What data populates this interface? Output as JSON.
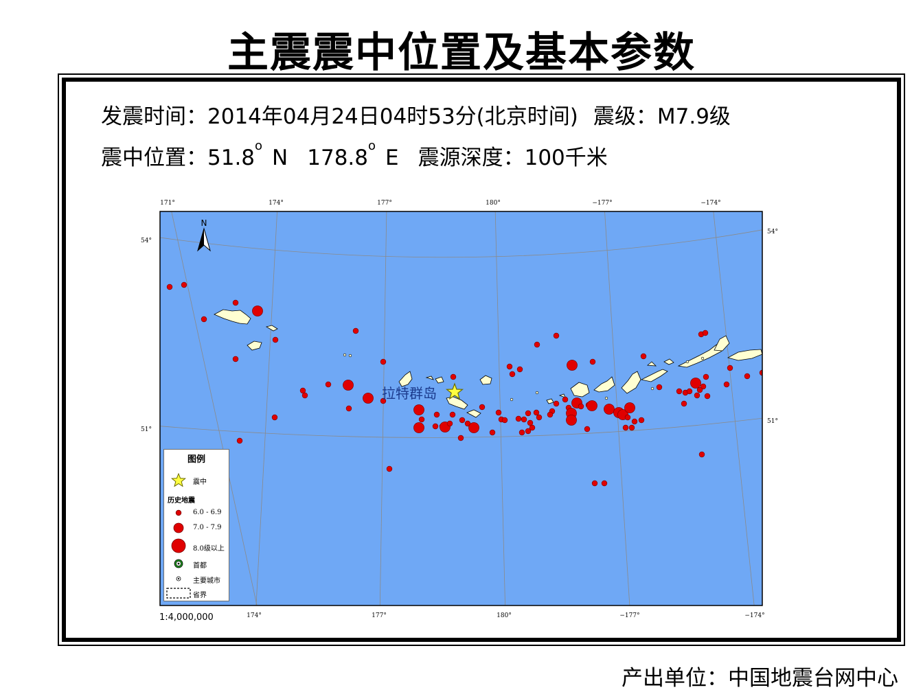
{
  "title": "主震震中位置及基本参数",
  "info": {
    "time_label": "发震时间：",
    "time_value": "2014年04月24日04时53分(北京时间)",
    "magnitude_label": "震级：",
    "magnitude_value": "M7.9级",
    "location_label": "震中位置：",
    "lat_value": "51.8",
    "lat_hemi": "N",
    "lon_value": "178.8",
    "lon_hemi": "E",
    "degree_mark": "o",
    "depth_label": "震源深度：",
    "depth_value": "100千米"
  },
  "map": {
    "place_label": "拉特群岛",
    "scale": "1:4,000,000",
    "north_label": "N",
    "top_lon_ticks": [
      "171°",
      "174°",
      "177°",
      "180°",
      "−177°",
      "−174°"
    ],
    "bottom_lon_ticks": [
      "174°",
      "177°",
      "180°",
      "−177°",
      "−174°"
    ],
    "left_lat_ticks": [
      "54°",
      "51°"
    ],
    "right_lat_ticks": [
      "54°",
      "51°"
    ],
    "colors": {
      "ocean": "#6fa8f5",
      "land": "#ffffd2",
      "quake": "#e00000",
      "epicenter": "#ffff40",
      "graticule": "#8a8a8a"
    },
    "legend": {
      "title": "图例",
      "epicenter": "震中",
      "history_heading": "历史地震",
      "mag_6": "6.0 - 6.9",
      "mag_7": "7.0 - 7.9",
      "mag_8": "8.0级以上",
      "capital": "首都",
      "city": "主要城市",
      "province": "省界"
    }
  },
  "footer": "产出单位：中国地震台网中心"
}
